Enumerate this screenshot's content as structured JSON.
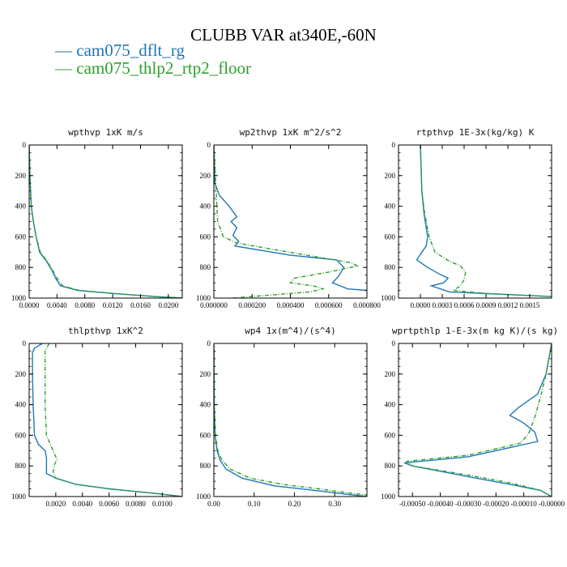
{
  "figure": {
    "title": "CLUBB VAR at340E,-60N",
    "legend": [
      {
        "label": "cam075_dflt_rg",
        "color": "#1f77b4"
      },
      {
        "label": "cam075_thlp2_rtp2_floor",
        "color": "#2ca02c"
      }
    ],
    "legend_marker": "—"
  },
  "chart_data": [
    {
      "type": "line",
      "title": "wpthvp 1xK m/s",
      "y_range": [
        0,
        1000
      ],
      "y_inverted": true,
      "y_ticks": [
        "0",
        "200",
        "400",
        "600",
        "800",
        "1000"
      ],
      "x_range": [
        0,
        0.022
      ],
      "x_ticks": [
        {
          "v": 0,
          "t": "0.0000"
        },
        {
          "v": 0.004,
          "t": "0.0040"
        },
        {
          "v": 0.008,
          "t": "0.0080"
        },
        {
          "v": 0.012,
          "t": "0.0120"
        },
        {
          "v": 0.016,
          "t": "0.0160"
        },
        {
          "v": 0.02,
          "t": "0.0200"
        }
      ],
      "series": [
        {
          "name": "cam075_dflt_rg",
          "color": "#1f77b4",
          "dashed": false,
          "x": [
            0,
            0.0001,
            0.0003,
            0.0006,
            0.001,
            0.0015,
            0.0025,
            0.0033,
            0.0038,
            0.0045,
            0.007,
            0.012,
            0.018,
            0.022
          ],
          "y": [
            0,
            200,
            400,
            500,
            600,
            700,
            760,
            820,
            870,
            920,
            950,
            970,
            990,
            1000
          ]
        },
        {
          "name": "cam075_thlp2_rtp2_floor",
          "color": "#2ca02c",
          "dashed": true,
          "x": [
            0,
            0.0001,
            0.0003,
            0.0006,
            0.001,
            0.0016,
            0.0026,
            0.0034,
            0.004,
            0.0048,
            0.0072,
            0.0122,
            0.0182,
            0.0222
          ],
          "y": [
            0,
            200,
            400,
            500,
            600,
            700,
            760,
            820,
            870,
            920,
            950,
            970,
            990,
            1000
          ]
        }
      ]
    },
    {
      "type": "line",
      "title": "wp2thvp 1xK m^2/s^2",
      "y_range": [
        0,
        1000
      ],
      "y_inverted": true,
      "y_ticks": [
        "0",
        "200",
        "400",
        "600",
        "800",
        "1000"
      ],
      "x_range": [
        0,
        0.0008
      ],
      "x_ticks": [
        {
          "v": 0,
          "t": "0.000000"
        },
        {
          "v": 0.0002,
          "t": "0.000200"
        },
        {
          "v": 0.0004,
          "t": "0.000400"
        },
        {
          "v": 0.0006,
          "t": "0.000600"
        },
        {
          "v": 0.0008,
          "t": "0.000800"
        }
      ],
      "series": [
        {
          "name": "cam075_dflt_rg",
          "color": "#1f77b4",
          "dashed": false,
          "x": [
            0,
            5e-06,
            3e-05,
            8e-05,
            0.00012,
            9e-05,
            0.00012,
            0.0001,
            0.00013,
            0.00011,
            0.0004,
            0.00064,
            0.00068,
            0.00065,
            0.00062,
            0.0007,
            0.0008
          ],
          "y": [
            0,
            250,
            330,
            400,
            470,
            500,
            540,
            590,
            630,
            660,
            720,
            750,
            800,
            860,
            900,
            940,
            950
          ]
        },
        {
          "name": "cam075_thlp2_rtp2_floor",
          "color": "#2ca02c",
          "dashed": true,
          "x": [
            0,
            2e-05,
            5e-05,
            0.00012,
            0.0003,
            0.00058,
            0.00072,
            0.00075,
            0.0006,
            0.00042,
            0.0004,
            0.00052,
            0.00057,
            0.0005,
            0.0003,
            0.0001
          ],
          "y": [
            0,
            500,
            600,
            640,
            680,
            740,
            770,
            790,
            830,
            870,
            900,
            920,
            940,
            960,
            980,
            1000
          ]
        }
      ]
    },
    {
      "type": "line",
      "title": "rtpthvp 1E-3x(kg/kg) K",
      "y_range": [
        0,
        1000
      ],
      "y_inverted": true,
      "y_ticks": [
        "0",
        "200",
        "400",
        "600",
        "800",
        "1000"
      ],
      "x_range": [
        -0.0003,
        0.0018
      ],
      "x_ticks": [
        {
          "v": 0,
          "t": "0.0000"
        },
        {
          "v": 0.0003,
          "t": "0.0003"
        },
        {
          "v": 0.0006,
          "t": "0.0006"
        },
        {
          "v": 0.0009,
          "t": "0.0009"
        },
        {
          "v": 0.0012,
          "t": "0.0012"
        },
        {
          "v": 0.0015,
          "t": "0.0015"
        }
      ],
      "series": [
        {
          "name": "cam075_dflt_rg",
          "color": "#1f77b4",
          "dashed": false,
          "x": [
            0,
            2e-05,
            5e-05,
            0.0001,
            8e-05,
            2e-05,
            -5e-05,
            0.0001,
            0.00025,
            0.00038,
            0.00032,
            0.00015,
            0.0004,
            0.0018
          ],
          "y": [
            0,
            300,
            450,
            600,
            660,
            700,
            750,
            800,
            840,
            870,
            900,
            920,
            960,
            990
          ]
        },
        {
          "name": "cam075_thlp2_rtp2_floor",
          "color": "#2ca02c",
          "dashed": true,
          "x": [
            0,
            2e-05,
            6e-05,
            0.00012,
            0.0002,
            0.0004,
            0.00055,
            0.00062,
            0.0006,
            0.00055,
            0.00045,
            0.0009,
            0.0018
          ],
          "y": [
            0,
            300,
            450,
            600,
            700,
            760,
            790,
            830,
            880,
            920,
            950,
            970,
            990
          ]
        }
      ]
    },
    {
      "type": "line",
      "title": "thlpthvp 1xK^2",
      "y_range": [
        0,
        1000
      ],
      "y_inverted": true,
      "y_ticks": [
        "0",
        "200",
        "400",
        "600",
        "800",
        "1000"
      ],
      "x_range": [
        0,
        0.0115
      ],
      "x_ticks": [
        {
          "v": 0.002,
          "t": "0.0020"
        },
        {
          "v": 0.004,
          "t": "0.0040"
        },
        {
          "v": 0.006,
          "t": "0.0060"
        },
        {
          "v": 0.008,
          "t": "0.0080"
        },
        {
          "v": 0.01,
          "t": "0.0100"
        }
      ],
      "series": [
        {
          "name": "cam075_dflt_rg",
          "color": "#1f77b4",
          "dashed": false,
          "x": [
            0.001,
            0.0004,
            0.00025,
            0.00025,
            0.0003,
            0.0004,
            0.0007,
            0.0012,
            0.0013,
            0.0013,
            0.002,
            0.0035,
            0.006,
            0.0095,
            0.0115
          ],
          "y": [
            0,
            30,
            60,
            200,
            400,
            600,
            660,
            700,
            750,
            850,
            880,
            920,
            950,
            980,
            1000
          ]
        },
        {
          "name": "cam075_thlp2_rtp2_floor",
          "color": "#2ca02c",
          "dashed": true,
          "x": [
            0.0015,
            0.0012,
            0.0012,
            0.0012,
            0.0013,
            0.0017,
            0.0021,
            0.0019,
            0.0018,
            0.002,
            0.0035,
            0.006,
            0.0095,
            0.0115
          ],
          "y": [
            0,
            50,
            200,
            400,
            600,
            680,
            760,
            790,
            840,
            880,
            920,
            950,
            980,
            1000
          ]
        }
      ]
    },
    {
      "type": "line",
      "title": "wp4 1x(m^4)/(s^4)",
      "y_range": [
        0,
        1000
      ],
      "y_inverted": true,
      "y_ticks": [
        "0",
        "200",
        "400",
        "600",
        "800",
        "1000"
      ],
      "x_range": [
        0,
        0.38
      ],
      "x_ticks": [
        {
          "v": 0,
          "t": "0.00"
        },
        {
          "v": 0.1,
          "t": "0.10"
        },
        {
          "v": 0.2,
          "t": "0.20"
        },
        {
          "v": 0.3,
          "t": "0.30"
        }
      ],
      "series": [
        {
          "name": "cam075_dflt_rg",
          "color": "#1f77b4",
          "dashed": false,
          "x": [
            0,
            0.001,
            0.003,
            0.008,
            0.015,
            0.03,
            0.07,
            0.15,
            0.25,
            0.33,
            0.38
          ],
          "y": [
            0,
            400,
            600,
            700,
            760,
            820,
            880,
            930,
            960,
            985,
            1000
          ]
        },
        {
          "name": "cam075_thlp2_rtp2_floor",
          "color": "#2ca02c",
          "dashed": true,
          "x": [
            0,
            0.001,
            0.004,
            0.01,
            0.02,
            0.04,
            0.09,
            0.17,
            0.26,
            0.33,
            0.38
          ],
          "y": [
            0,
            400,
            600,
            700,
            760,
            820,
            880,
            920,
            950,
            975,
            990
          ]
        }
      ]
    },
    {
      "type": "line",
      "title": "wprtpthlp 1-E-3x(m kg K)/(s kg)",
      "y_range": [
        0,
        1000
      ],
      "y_inverted": true,
      "y_ticks": [
        "0",
        "200",
        "400",
        "600",
        "800",
        "1000"
      ],
      "x_range": [
        -0.00055,
        0.0
      ],
      "x_ticks": [
        {
          "v": -0.0005,
          "t": "-0.00050"
        },
        {
          "v": -0.0004,
          "t": "-0.00040"
        },
        {
          "v": -0.0003,
          "t": "-0.00030"
        },
        {
          "v": -0.0002,
          "t": "-0.00020"
        },
        {
          "v": -0.0001,
          "t": "-0.00010"
        },
        {
          "v": 0,
          "t": "-0.00000"
        }
      ],
      "series": [
        {
          "name": "cam075_dflt_rg",
          "color": "#1f77b4",
          "dashed": false,
          "x": [
            0,
            -2e-05,
            -5e-05,
            -0.00012,
            -0.00015,
            -0.0001,
            -6e-05,
            -5e-05,
            -0.0003,
            -0.00053,
            -0.0005,
            -0.0003,
            -0.00015,
            -4e-05,
            0
          ],
          "y": [
            0,
            200,
            330,
            420,
            470,
            520,
            580,
            640,
            740,
            780,
            800,
            870,
            920,
            960,
            1000
          ]
        },
        {
          "name": "cam075_thlp2_rtp2_floor",
          "color": "#2ca02c",
          "dashed": true,
          "x": [
            0,
            -2e-05,
            -4e-05,
            -6e-05,
            -8e-05,
            -0.00011,
            -0.0003,
            -0.00052,
            -0.0005,
            -0.0003,
            -0.00015,
            -4e-05,
            0
          ],
          "y": [
            0,
            200,
            350,
            480,
            580,
            650,
            730,
            770,
            800,
            860,
            910,
            960,
            1000
          ]
        }
      ]
    }
  ]
}
